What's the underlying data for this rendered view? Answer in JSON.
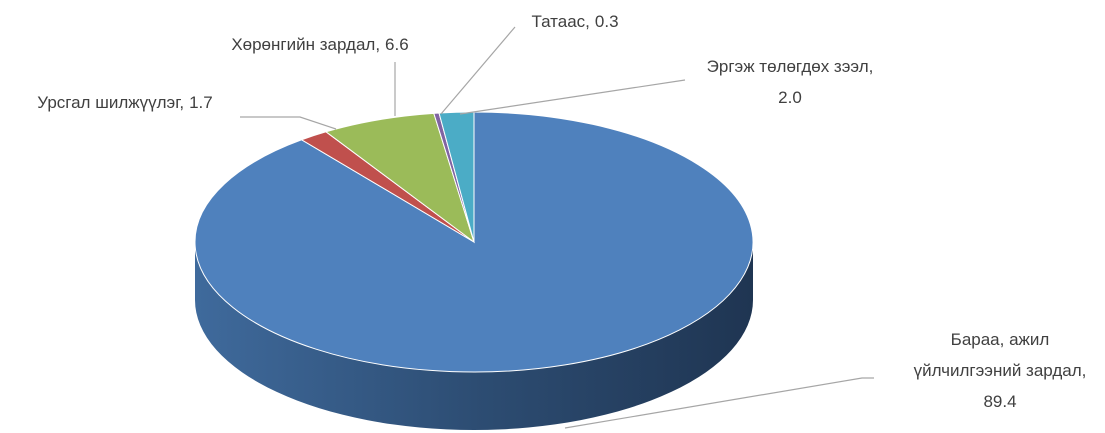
{
  "chart_data": {
    "type": "pie3d",
    "categories": [
      "Бараа, ажил үйлчилгээний зардал",
      "Урсгал шилжүүлэг",
      "Хөрөнгийн зардал",
      "Татаас",
      "Эргэж төлөгдөх зээл"
    ],
    "values": [
      89.4,
      1.7,
      6.6,
      0.3,
      2.0
    ],
    "value_labels": [
      "89.4",
      "1.7",
      "6.6",
      "0.3",
      "2.0"
    ],
    "colors": [
      "#4f81bd",
      "#c0504d",
      "#9bbb59",
      "#8064a2",
      "#4bacc6"
    ]
  }
}
